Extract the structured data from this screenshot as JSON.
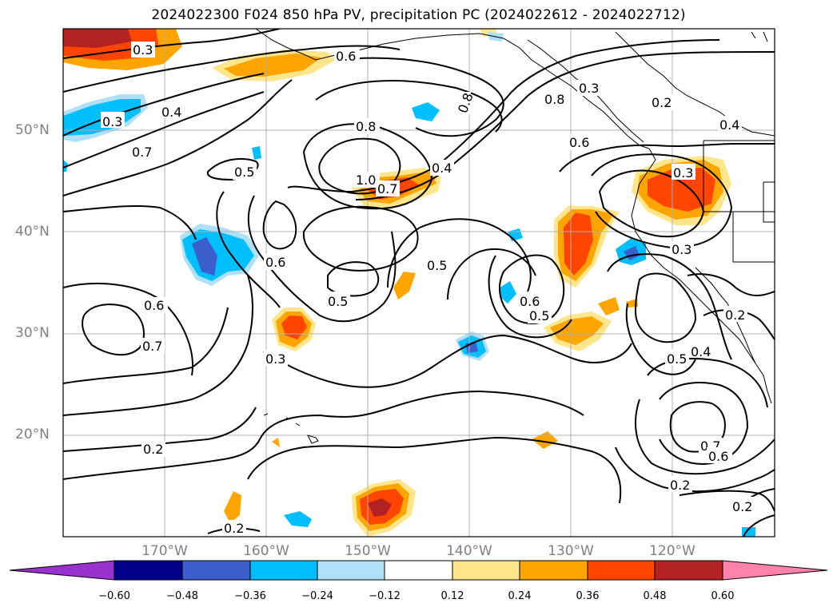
{
  "title": "2024022300 F024 850 hPa PV, precipitation PC (2024022612 - 2024022712)",
  "axes": {
    "lat_labels": [
      "50°N",
      "40°N",
      "30°N",
      "20°N"
    ],
    "lon_labels": [
      "170°W",
      "160°W",
      "150°W",
      "140°W",
      "130°W",
      "120°W"
    ],
    "lon_range": [
      "180°W",
      "110°W"
    ],
    "lat_range": [
      "10°N",
      "60°N"
    ],
    "grid": true,
    "tick_label_color": "#808080"
  },
  "colorbar": {
    "orientation": "horizontal",
    "extend": "both",
    "tick_labels": [
      "−0.60",
      "−0.48",
      "−0.36",
      "−0.24",
      "−0.12",
      "0.12",
      "0.24",
      "0.36",
      "0.48",
      "0.60"
    ],
    "colors": [
      "#9932cc",
      "#00008b",
      "#3a5fcd",
      "#00bfff",
      "#afe0f8",
      "#ffffff",
      "#ffe68a",
      "#ffa500",
      "#ff4500",
      "#b22222",
      "#ff82ab"
    ]
  },
  "contour_labels": [
    "0.3",
    "0.6",
    "0.4",
    "0.3",
    "0.7",
    "0.8",
    "0.8",
    "0.5",
    "0.5",
    "0.3",
    "0.2",
    "0.6",
    "0.4",
    "1.0",
    "0.7",
    "0.4",
    "0.3",
    "0.8",
    "0.6",
    "0.5",
    "0.6",
    "0.5",
    "0.3",
    "0.6",
    "0.7",
    "0.3",
    "0.2",
    "0.5",
    "0.4",
    "0.2",
    "0.7",
    "0.6",
    "0.2",
    "0.2",
    "0.2"
  ]
}
